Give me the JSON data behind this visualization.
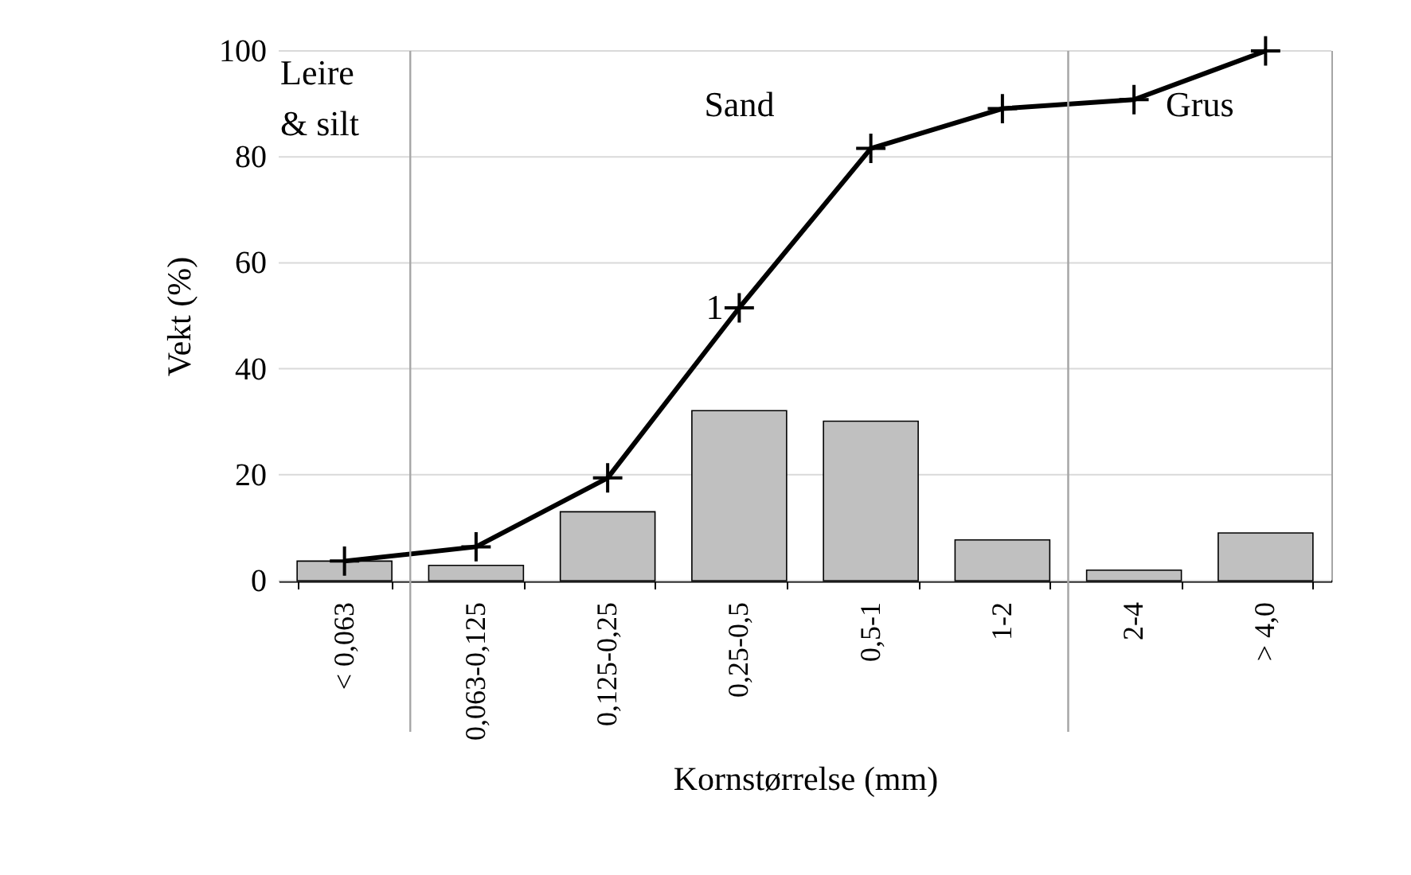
{
  "chart_data": {
    "type": "bar",
    "xlabel": "Kornstørrelse (mm)",
    "ylabel": "Vekt (%)",
    "categories": [
      "< 0,063",
      "0,063-0,125",
      "0,125-0,25",
      "0,25-0,5",
      "0,5-1",
      "1-2",
      "2-4",
      "> 4,0"
    ],
    "series": [
      {
        "color": "#c0c0c0",
        "values": [
          3.7,
          2.9,
          13.0,
          32.1,
          30.1,
          7.7,
          2.0,
          9.0
        ]
      },
      {
        "type": "line",
        "color": "#000000",
        "marker": "cross",
        "values": [
          3.7,
          6.4,
          19.4,
          51.5,
          81.6,
          89.1,
          90.8,
          100
        ]
      }
    ],
    "ylim": [
      0,
      100
    ],
    "yticks": [
      0,
      20,
      40,
      60,
      80,
      100
    ],
    "grid": "y",
    "bands": [
      {
        "axis": "x",
        "from": "< 0,063",
        "to": "< 0,063",
        "label": "Leire\n& silt",
        "color": "#ffffff"
      },
      {
        "axis": "x",
        "from": "0,063-0,125",
        "to": "1-2",
        "label": "Sand",
        "color": "#ffffff"
      },
      {
        "axis": "x",
        "from": "2-4",
        "to": "> 4,0",
        "label": "Grus",
        "color": "#ffffff"
      }
    ],
    "annotations": [
      {
        "text": "1",
        "x": "0,25-0,5",
        "y": 51.5
      }
    ]
  }
}
